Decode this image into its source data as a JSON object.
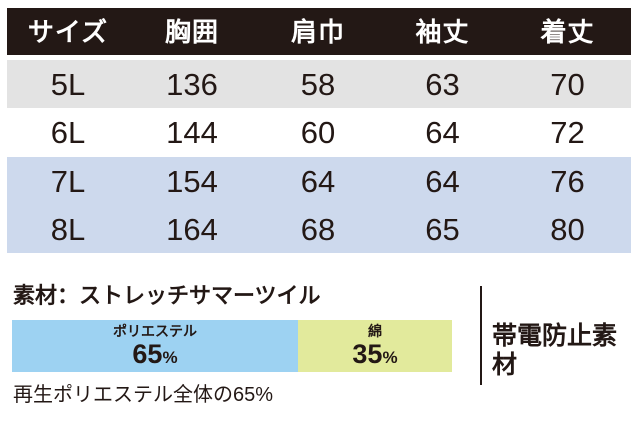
{
  "table": {
    "headers": [
      "サイズ",
      "胸囲",
      "肩巾",
      "袖丈",
      "着丈"
    ],
    "rows": [
      {
        "size": "5L",
        "values": [
          "136",
          "58",
          "63",
          "70"
        ]
      },
      {
        "size": "6L",
        "values": [
          "144",
          "60",
          "64",
          "72"
        ]
      },
      {
        "size": "7L",
        "values": [
          "154",
          "64",
          "64",
          "76"
        ]
      },
      {
        "size": "8L",
        "values": [
          "164",
          "68",
          "65",
          "80"
        ]
      }
    ]
  },
  "material": {
    "label": "素材：ストレッチサマーツイル",
    "composition": [
      {
        "name": "ポリエステル",
        "percent": "65",
        "unit": "%",
        "width": "65%",
        "color": "#9dd2f2"
      },
      {
        "name": "綿",
        "percent": "35",
        "unit": "%",
        "width": "35%",
        "color": "#e2ea9c"
      }
    ],
    "side_label": "帯電防止素材",
    "note": "再生ポリエステル全体の65%"
  },
  "colors": {
    "header_bg": "#231815",
    "header_text": "#ffffff",
    "body_text": "#231815",
    "row_gray": "#e3e3e3",
    "row_blue": "#cdd9ed",
    "bar_polyester": "#9dd2f2",
    "bar_cotton": "#e2ea9c"
  },
  "chart_data": [
    {
      "type": "table",
      "title": "サイズ表",
      "columns": [
        "サイズ",
        "胸囲",
        "肩巾",
        "袖丈",
        "着丈"
      ],
      "rows": [
        [
          "5L",
          136,
          58,
          63,
          70
        ],
        [
          "6L",
          144,
          60,
          64,
          72
        ],
        [
          "7L",
          154,
          64,
          64,
          76
        ],
        [
          "8L",
          164,
          68,
          65,
          80
        ]
      ]
    },
    {
      "type": "bar",
      "title": "素材：ストレッチサマーツイル",
      "series": [
        {
          "name": "ポリエステル",
          "values": [
            65
          ]
        },
        {
          "name": "綿",
          "values": [
            35
          ]
        }
      ],
      "annotations": [
        "再生ポリエステル全体の65%",
        "帯電防止素材"
      ],
      "xlabel": "",
      "ylabel": "",
      "legend_position": "on-bar"
    }
  ]
}
